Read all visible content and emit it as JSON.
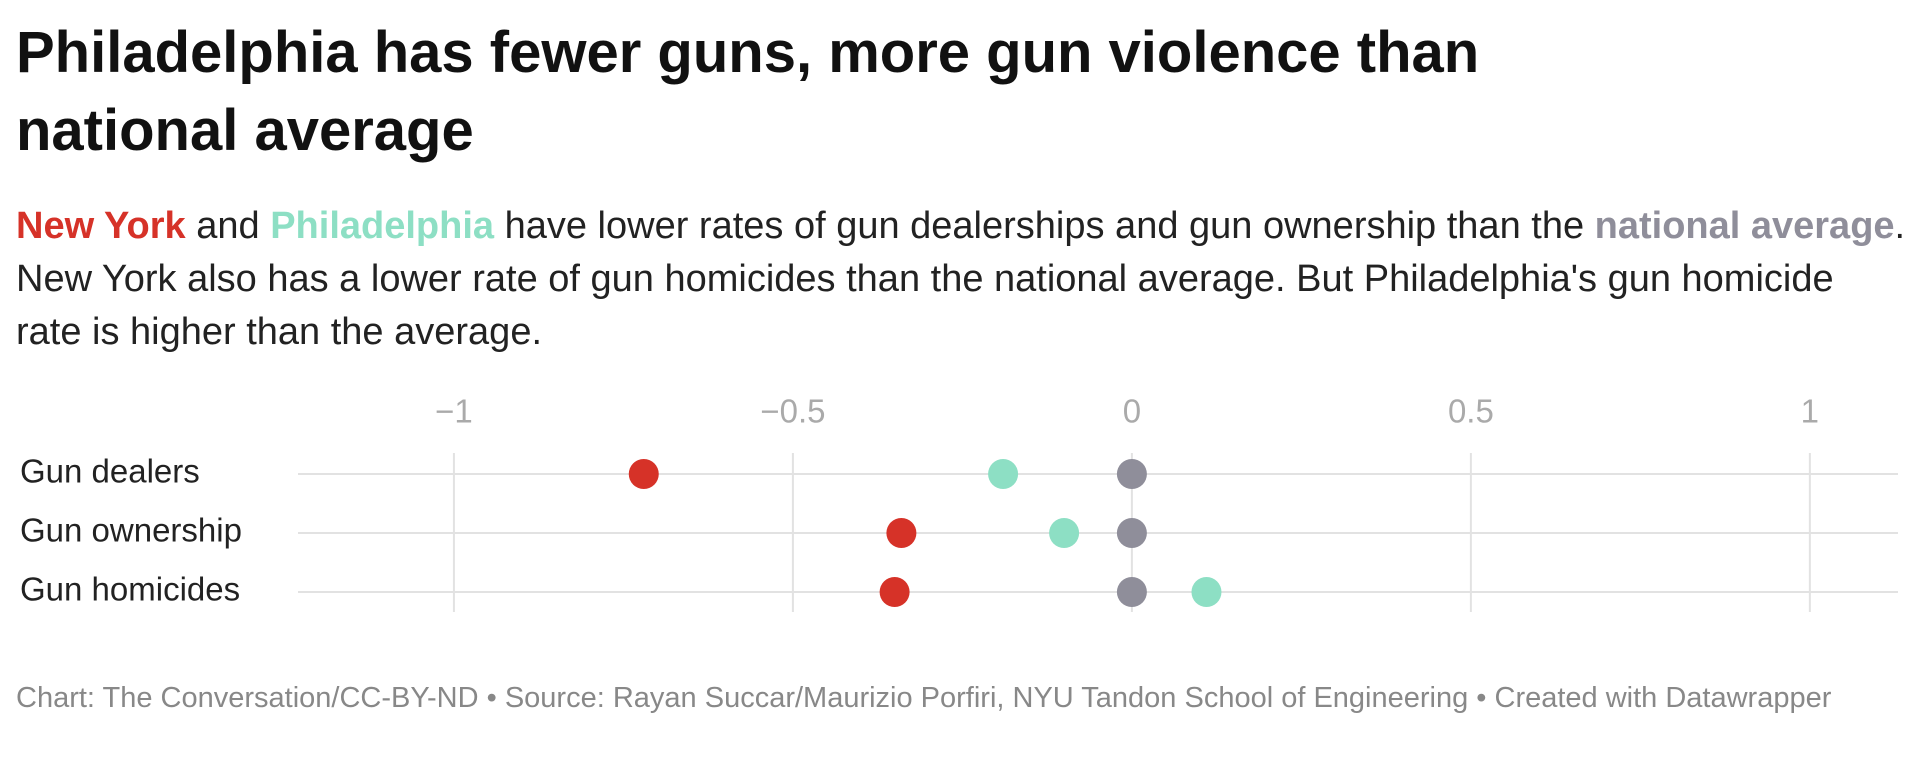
{
  "chart_data": {
    "type": "dot",
    "title": "Philadelphia has fewer guns, more gun violence than national average",
    "subtitle_parts": [
      " and ",
      " have lower rates of gun dealerships and gun ownership than the ",
      ". New York also has a lower rate of gun homicides than the national average. But Philadelphia's gun homicide rate is higher than the average."
    ],
    "categories": [
      "Gun dealers",
      "Gun ownership",
      "Gun homicides"
    ],
    "series": [
      {
        "name": "New York",
        "color": "#d63228",
        "values": [
          -0.72,
          -0.34,
          -0.35
        ]
      },
      {
        "name": "Philadelphia",
        "color": "#8ddfc4",
        "values": [
          -0.19,
          -0.1,
          0.11
        ]
      },
      {
        "name": "national average",
        "color": "#8f8e9a",
        "values": [
          0,
          0,
          0
        ]
      }
    ],
    "xlim": [
      -1.23,
      1.13
    ],
    "xticks": [
      {
        "value": -1,
        "label": "−1"
      },
      {
        "value": -0.5,
        "label": "−0.5"
      },
      0,
      0.5,
      1
    ],
    "grid": true,
    "footer": "Chart: The Conversation/CC-BY-ND • Source: Rayan Succar/Maurizio Porfiri, NYU Tandon School of Engineering • Created with Datawrapper"
  }
}
